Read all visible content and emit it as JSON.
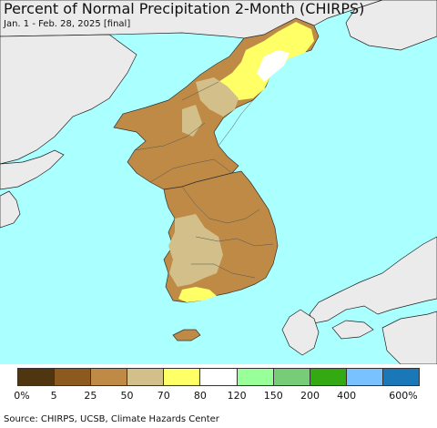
{
  "header": {
    "title": "Percent of Normal Precipitation 2-Month (CHIRPS)",
    "subtitle": "Jan. 1 - Feb. 28, 2025 [final]"
  },
  "legend": {
    "colors": [
      "#4f3610",
      "#8c5a1f",
      "#bf8a45",
      "#d2bf89",
      "#ffff66",
      "#ffffff",
      "#99ff99",
      "#77cc77",
      "#33aa11",
      "#77c2ff",
      "#1a78b9"
    ],
    "ticks": [
      "0%",
      "5",
      "25",
      "50",
      "70",
      "80",
      "120",
      "150",
      "200",
      "400",
      "600%"
    ]
  },
  "footer": {
    "source": "Source: CHIRPS, UCSB, Climate Hazards Center"
  },
  "map_colors": {
    "sea": "#aaffff",
    "outside_land": "#ecebec",
    "dry_brown": "#bf8a45",
    "tan": "#d2bf89",
    "yellow": "#ffff66",
    "white": "#ffffff"
  }
}
